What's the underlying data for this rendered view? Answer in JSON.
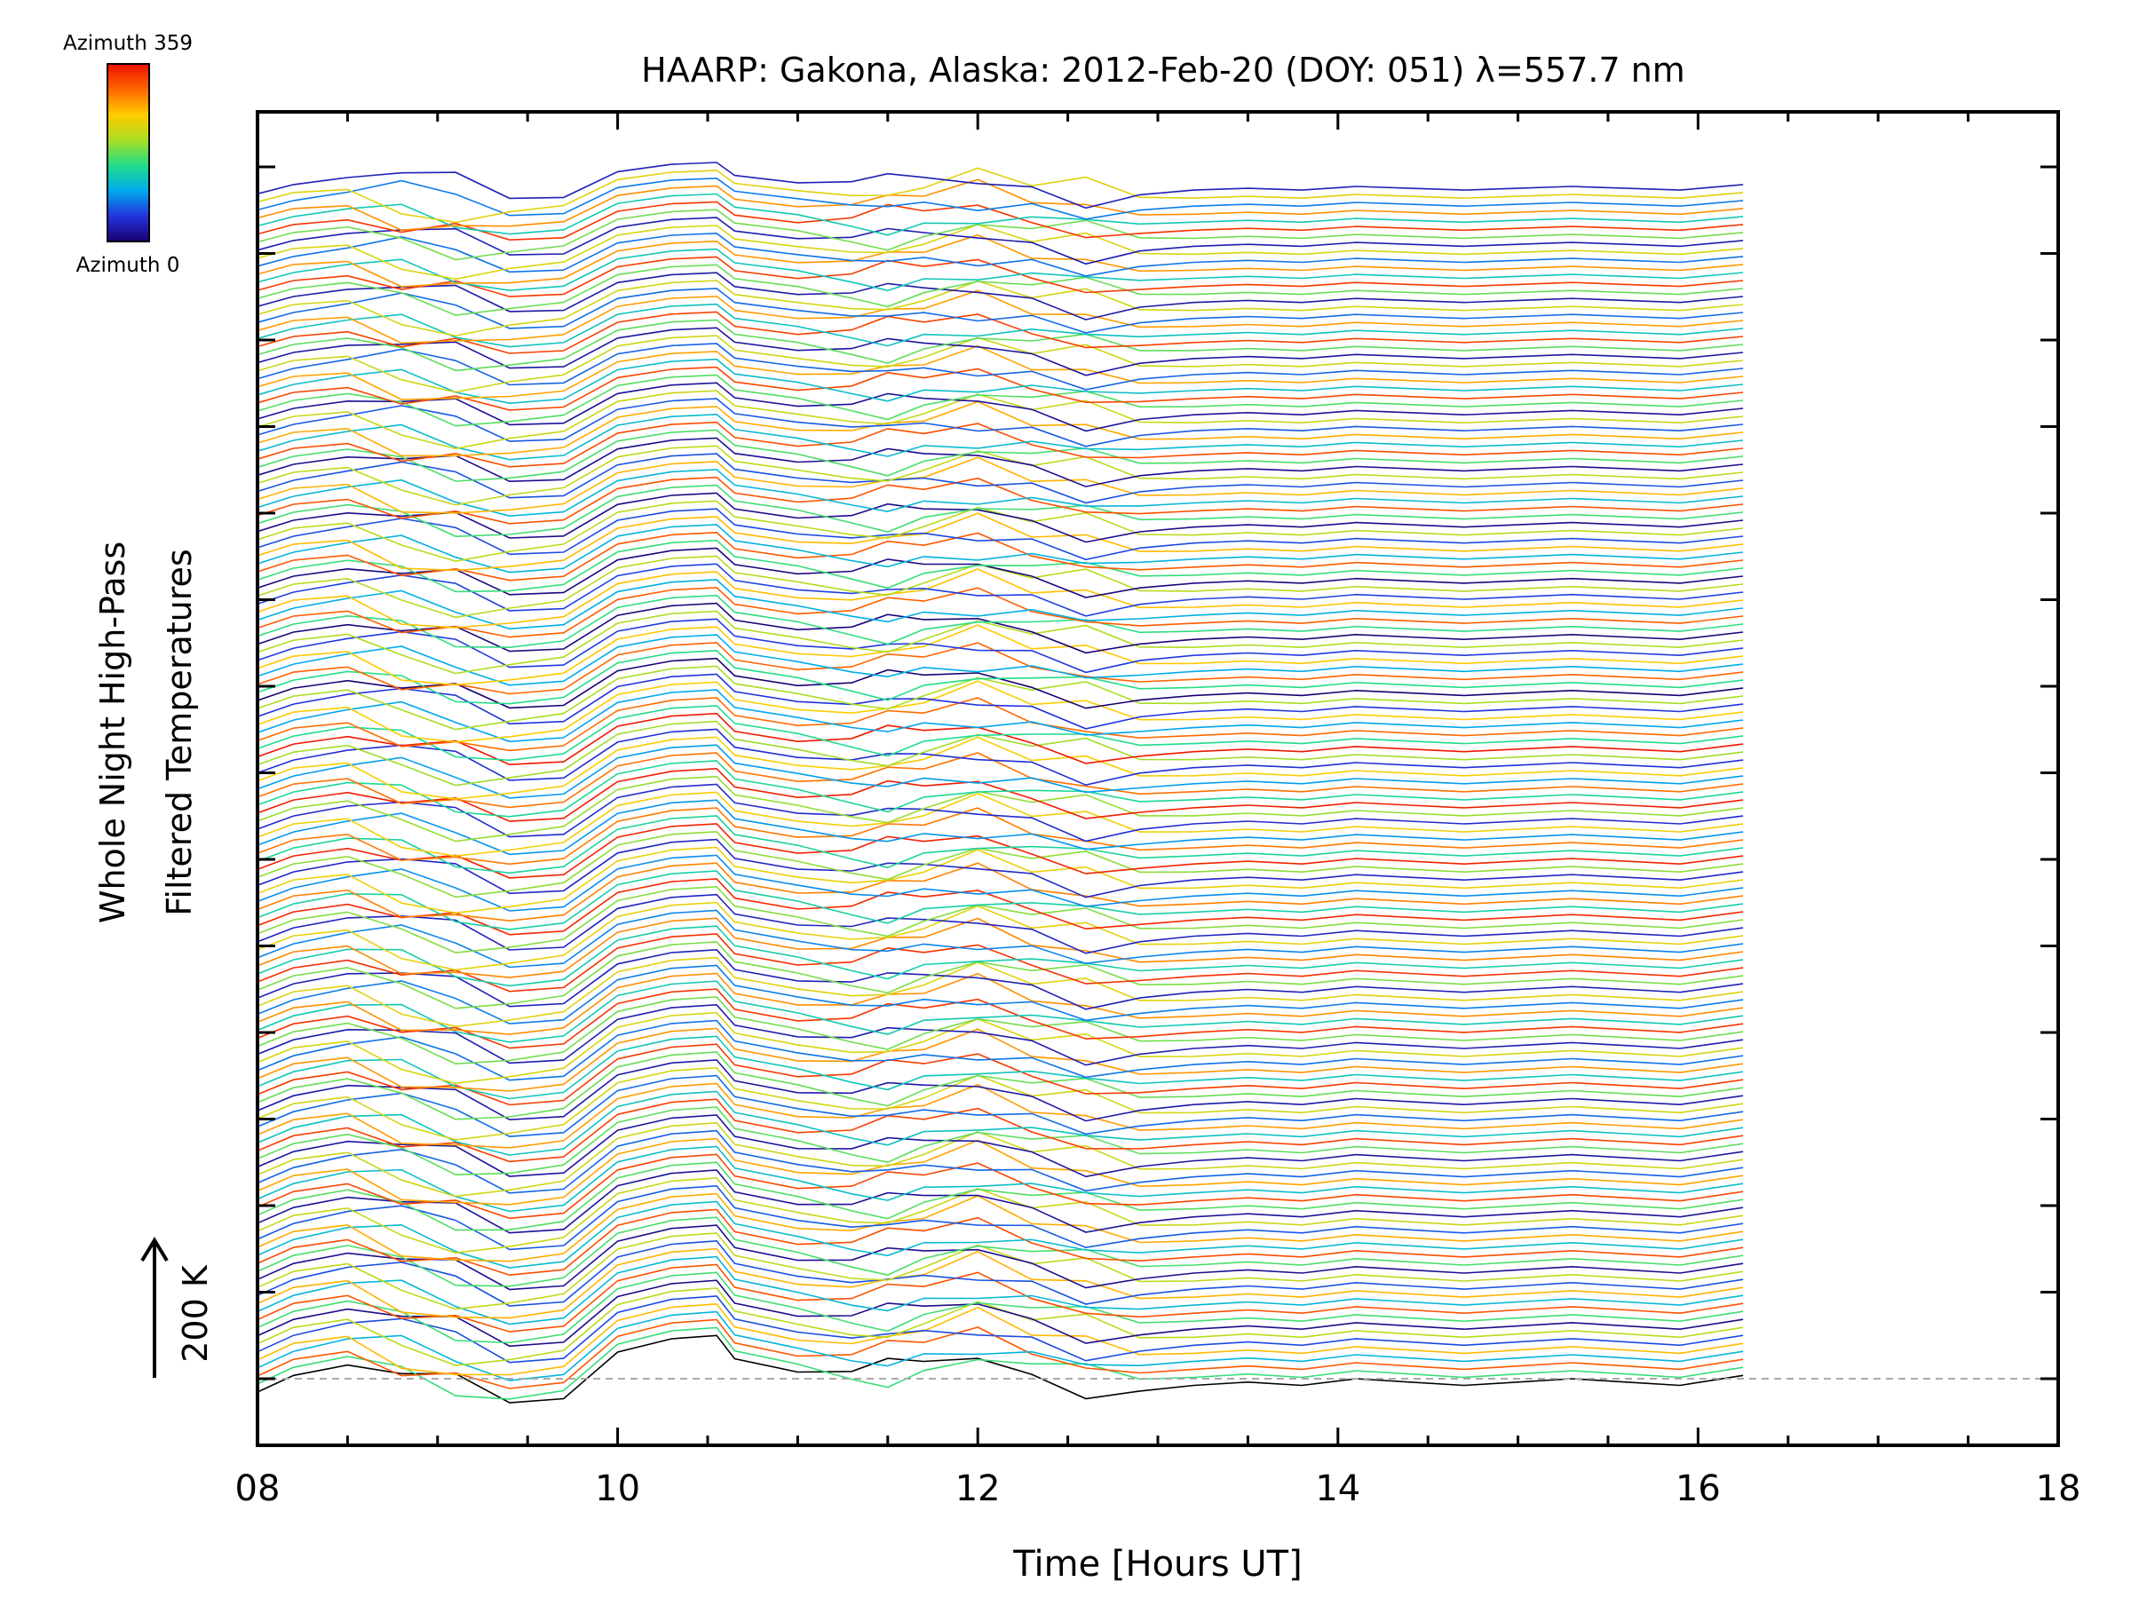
{
  "chart_data": {
    "type": "line",
    "title": "HAARP: Gakona,  Alaska: 2012-Feb-20 (DOY: 051) λ=557.7 nm",
    "xlabel": "Time [Hours UT]",
    "ylabel_line1": "Whole Night High-Pass",
    "ylabel_line2": "Filtered Temperatures",
    "xlim": [
      8,
      18
    ],
    "x_ticks": [
      "08",
      "10",
      "12",
      "14",
      "16",
      "18"
    ],
    "scale_bar_label": "200 K",
    "colorbar": {
      "top_label": "Azimuth 359",
      "bottom_label": "Azimuth 0",
      "colors": [
        "#1a0070",
        "#2233dd",
        "#00aaee",
        "#22dd88",
        "#aadd22",
        "#ffcc00",
        "#ff6600",
        "#ee1100"
      ]
    },
    "stack_base_times": [
      8.0,
      8.2,
      8.5,
      8.8,
      9.1,
      9.4,
      9.7,
      10.0,
      10.3,
      10.55,
      10.65,
      11.0,
      11.3,
      11.5,
      11.7,
      12.0,
      12.3,
      12.6,
      12.9,
      13.2,
      13.5,
      13.8,
      14.1,
      14.4,
      14.7,
      15.0,
      15.3,
      15.6,
      15.9,
      16.25
    ],
    "stack_base_temperatures_K": [
      -20,
      5,
      20,
      0,
      -20,
      -40,
      -30,
      40,
      60,
      65,
      30,
      10,
      0,
      5,
      15,
      30,
      10,
      -5,
      -15,
      -10,
      -5,
      -10,
      0,
      -5,
      -10,
      -5,
      0,
      -5,
      -10,
      5
    ],
    "series_count": 150,
    "azimuth_range": [
      0,
      359
    ]
  }
}
